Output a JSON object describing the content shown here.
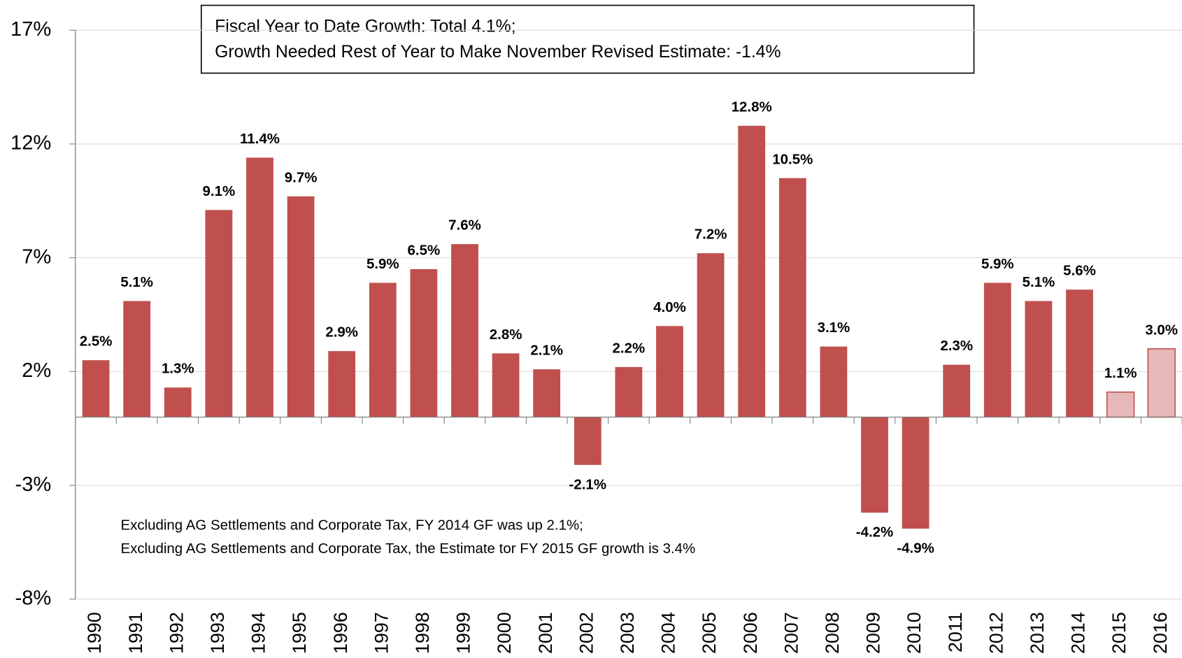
{
  "chart_data": {
    "type": "bar",
    "categories": [
      "1990",
      "1991",
      "1992",
      "1993",
      "1994",
      "1995",
      "1996",
      "1997",
      "1998",
      "1999",
      "2000",
      "2001",
      "2002",
      "2003",
      "2004",
      "2005",
      "2006",
      "2007",
      "2008",
      "2009",
      "2010",
      "2011",
      "2012",
      "2013",
      "2014",
      "2015",
      "2016"
    ],
    "values": [
      2.5,
      5.1,
      1.3,
      9.1,
      11.4,
      9.7,
      2.9,
      5.9,
      6.5,
      7.6,
      2.8,
      2.1,
      -2.1,
      2.2,
      4.0,
      7.2,
      12.8,
      10.5,
      3.1,
      -4.2,
      -4.9,
      2.3,
      5.9,
      5.1,
      5.6,
      1.1,
      3.0
    ],
    "value_labels": [
      "2.5%",
      "5.1%",
      "1.3%",
      "9.1%",
      "11.4%",
      "9.7%",
      "2.9%",
      "5.9%",
      "6.5%",
      "7.6%",
      "2.8%",
      "2.1%",
      "-2.1%",
      "2.2%",
      "4.0%",
      "7.2%",
      "12.8%",
      "10.5%",
      "3.1%",
      "-4.2%",
      "-4.9%",
      "2.3%",
      "5.9%",
      "5.1%",
      "5.6%",
      "1.1%",
      "3.0%"
    ],
    "colors": [
      "#c0504d",
      "#c0504d",
      "#c0504d",
      "#c0504d",
      "#c0504d",
      "#c0504d",
      "#c0504d",
      "#c0504d",
      "#c0504d",
      "#c0504d",
      "#c0504d",
      "#c0504d",
      "#c0504d",
      "#c0504d",
      "#c0504d",
      "#c0504d",
      "#c0504d",
      "#c0504d",
      "#c0504d",
      "#c0504d",
      "#c0504d",
      "#c0504d",
      "#c0504d",
      "#c0504d",
      "#c0504d",
      "#e6b9b8",
      "#e6b9b8"
    ],
    "ylim": [
      -8,
      17
    ],
    "yticks": [
      {
        "value": -8,
        "label": "-8%"
      },
      {
        "value": -3,
        "label": "-3%"
      },
      {
        "value": 2,
        "label": "2%"
      },
      {
        "value": 7,
        "label": "7%"
      },
      {
        "value": 12,
        "label": "12%"
      },
      {
        "value": 17,
        "label": "17%"
      }
    ],
    "grid": true,
    "annotation_box": [
      "Fiscal Year to Date Growth:  Total 4.1%;",
      "Growth Needed Rest of Year to Make November Revised Estimate:  -1.4%"
    ],
    "note": [
      "Excluding  AG Settlements and Corporate Tax, FY 2014 GF was up 2.1%;",
      "Excluding AG Settlements and Corporate Tax, the Estimate tor  FY 2015 GF growth is 3.4%"
    ]
  }
}
